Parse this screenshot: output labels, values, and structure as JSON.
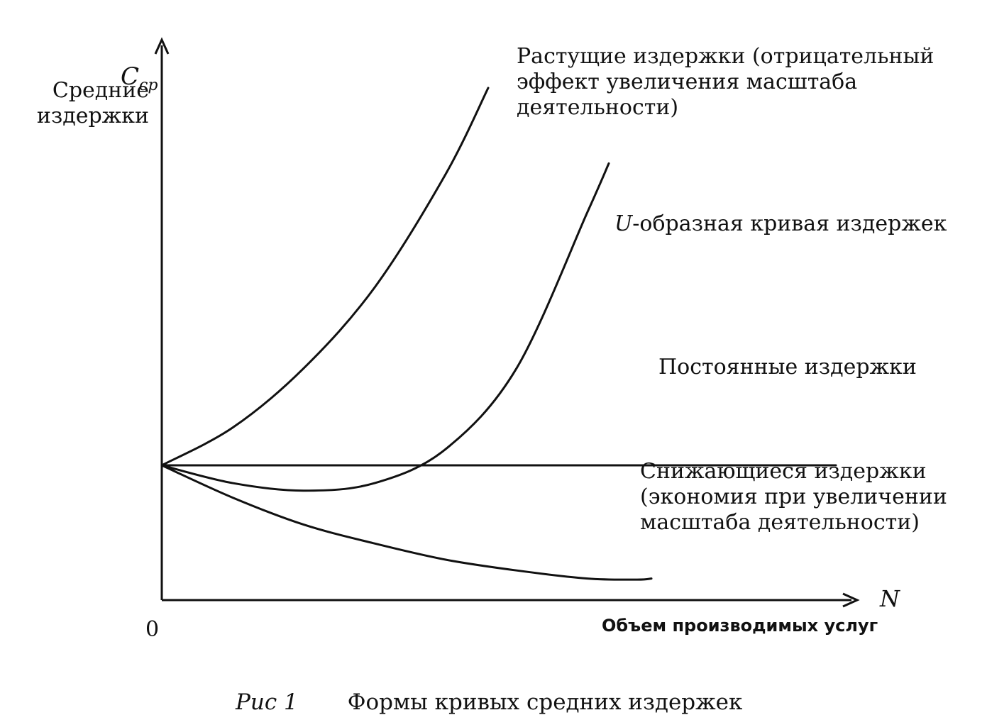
{
  "chart_data": {
    "type": "line",
    "title": "Формы кривых средних издержек",
    "figure_label": "Рис 1",
    "y_axis": {
      "symbol": "C",
      "symbol_subscript": "ср",
      "label": "Средние\nиздержки"
    },
    "x_axis": {
      "symbol": "N",
      "label": "Объем производимых услуг"
    },
    "origin_label": "0",
    "series": [
      {
        "key": "rising",
        "name": "Растущие издержки (отрицательный\nэффект увеличения масштаба\nдеятельности)",
        "points": [
          [
            0,
            0.25
          ],
          [
            0.1,
            0.32
          ],
          [
            0.2,
            0.43
          ],
          [
            0.3,
            0.58
          ],
          [
            0.4,
            0.79
          ],
          [
            0.46,
            0.95
          ]
        ]
      },
      {
        "key": "u_shaped",
        "name_prefix": "U",
        "name": "-образная кривая издержек",
        "points": [
          [
            0,
            0.25
          ],
          [
            0.1,
            0.217
          ],
          [
            0.2,
            0.203
          ],
          [
            0.3,
            0.217
          ],
          [
            0.4,
            0.28
          ],
          [
            0.5,
            0.43
          ],
          [
            0.6,
            0.72
          ],
          [
            0.63,
            0.81
          ]
        ]
      },
      {
        "key": "constant",
        "name": "Постоянные издержки",
        "points": [
          [
            0,
            0.25
          ],
          [
            0.95,
            0.25
          ]
        ]
      },
      {
        "key": "falling",
        "name": "Снижающиеся издержки\n(экономия при увеличении\nмасштаба деятельности)",
        "points": [
          [
            0,
            0.25
          ],
          [
            0.1,
            0.19
          ],
          [
            0.2,
            0.14
          ],
          [
            0.3,
            0.105
          ],
          [
            0.4,
            0.075
          ],
          [
            0.5,
            0.055
          ],
          [
            0.6,
            0.04
          ],
          [
            0.67,
            0.038
          ],
          [
            0.69,
            0.04
          ]
        ]
      }
    ],
    "xlim": [
      0,
      1
    ],
    "ylim": [
      0,
      1
    ],
    "grid": false,
    "colors": {
      "line": "#111111",
      "background": "#ffffff"
    }
  }
}
